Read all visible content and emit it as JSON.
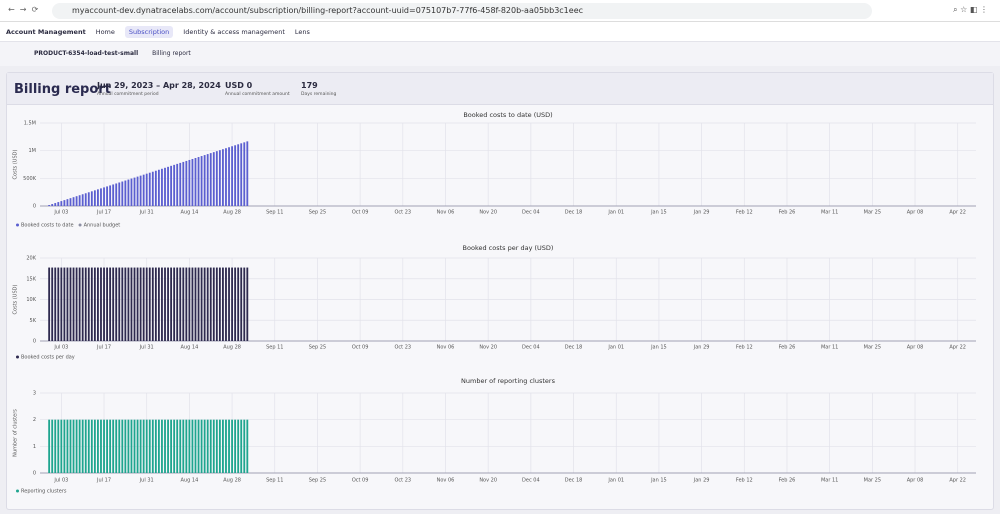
{
  "browser": {
    "url": "myaccount-dev.dynatracelabs.com/account/subscription/billing-report?account-uuid=075107b7-77f6-458f-820b-aa05bb3c1eec"
  },
  "nav": {
    "app": "Account Management",
    "items": [
      "Home",
      "Subscription",
      "Identity & access management",
      "Lens"
    ]
  },
  "breadcrumb": [
    "PRODUCT-6354-load-test-small",
    "Billing report"
  ],
  "header": {
    "title": "Billing report",
    "period": "Jun 29, 2023 – Apr 28, 2024",
    "period_label": "Annual commitment period",
    "amount": "USD 0",
    "amount_label": "Annual commitment amount",
    "days": "179",
    "days_label": "Days remaining"
  },
  "chart_data": [
    {
      "type": "bar",
      "title": "Booked costs to date (USD)",
      "y_label": "Costs (USD)",
      "x": [
        -4,
        -3,
        -2,
        -1,
        0,
        1,
        2,
        3,
        4,
        5,
        6,
        7,
        8,
        9,
        10,
        11,
        12,
        13,
        14,
        15,
        16,
        17,
        18,
        19,
        20,
        21,
        22,
        23,
        24,
        25,
        26,
        27,
        28,
        29,
        30,
        31,
        32,
        33,
        34,
        35,
        36,
        37,
        38,
        39,
        40,
        41,
        42,
        43,
        44,
        45,
        46,
        47,
        48,
        49,
        50,
        51,
        52,
        53,
        54,
        55,
        56,
        57,
        58,
        59,
        60,
        61
      ],
      "series": [
        {
          "name": "Booked costs to date",
          "color": "#5b5fd0",
          "values": [
            17700,
            35400,
            53100,
            70800,
            88500,
            106200,
            123900,
            141600,
            159300,
            177000,
            194700,
            212400,
            230100,
            247800,
            265500,
            283200,
            300900,
            318600,
            336300,
            354000,
            371700,
            389400,
            407100,
            424800,
            442500,
            460200,
            477900,
            495600,
            513300,
            531000,
            548700,
            566400,
            584100,
            601800,
            619500,
            637200,
            654900,
            672600,
            690300,
            708000,
            725700,
            743400,
            761100,
            778800,
            796500,
            814200,
            831900,
            849600,
            867300,
            885000,
            902700,
            920400,
            938100,
            955800,
            973500,
            991200,
            1008900,
            1026600,
            1044300,
            1062000,
            1079700,
            1097400,
            1115100,
            1132800,
            1150500,
            1168200
          ]
        }
      ],
      "legend_extra": [
        {
          "name": "Annual budget",
          "color": "#8c8fa3"
        }
      ],
      "xlim": [
        -7,
        300
      ],
      "xticks": [
        {
          "value": 0,
          "label": "Jul 03"
        },
        {
          "value": 14,
          "label": "Jul 17"
        },
        {
          "value": 28,
          "label": "Jul 31"
        },
        {
          "value": 42,
          "label": "Aug 14"
        },
        {
          "value": 56,
          "label": "Aug 28"
        },
        {
          "value": 70,
          "label": "Sep 11"
        },
        {
          "value": 84,
          "label": "Sep 25"
        },
        {
          "value": 98,
          "label": "Oct 09"
        },
        {
          "value": 112,
          "label": "Oct 23"
        },
        {
          "value": 126,
          "label": "Nov 06"
        },
        {
          "value": 140,
          "label": "Nov 20"
        },
        {
          "value": 154,
          "label": "Dec 04"
        },
        {
          "value": 168,
          "label": "Dec 18"
        },
        {
          "value": 182,
          "label": "Jan 01"
        },
        {
          "value": 196,
          "label": "Jan 15"
        },
        {
          "value": 210,
          "label": "Jan 29"
        },
        {
          "value": 224,
          "label": "Feb 12"
        },
        {
          "value": 238,
          "label": "Feb 26"
        },
        {
          "value": 252,
          "label": "Mar 11"
        },
        {
          "value": 266,
          "label": "Mar 25"
        },
        {
          "value": 280,
          "label": "Apr 08"
        },
        {
          "value": 294,
          "label": "Apr 22"
        }
      ],
      "ylim": [
        0,
        1500000
      ],
      "yticks": [
        0,
        {
          "value": 500000,
          "label": "500K"
        },
        {
          "value": 1000000,
          "label": "1M"
        },
        {
          "value": 1500000,
          "label": "1.5M"
        }
      ],
      "grid": true
    },
    {
      "type": "bar",
      "title": "Booked costs per day (USD)",
      "y_label": "Costs (USD)",
      "x": [
        -4,
        -3,
        -2,
        -1,
        0,
        1,
        2,
        3,
        4,
        5,
        6,
        7,
        8,
        9,
        10,
        11,
        12,
        13,
        14,
        15,
        16,
        17,
        18,
        19,
        20,
        21,
        22,
        23,
        24,
        25,
        26,
        27,
        28,
        29,
        30,
        31,
        32,
        33,
        34,
        35,
        36,
        37,
        38,
        39,
        40,
        41,
        42,
        43,
        44,
        45,
        46,
        47,
        48,
        49,
        50,
        51,
        52,
        53,
        54,
        55,
        56,
        57,
        58,
        59,
        60,
        61
      ],
      "series": [
        {
          "name": "Booked costs per day",
          "color": "#2e2a4f",
          "values": [
            17700,
            17700,
            17700,
            17700,
            17700,
            17700,
            17700,
            17700,
            17700,
            17700,
            17700,
            17700,
            17700,
            17700,
            17700,
            17700,
            17700,
            17700,
            17700,
            17700,
            17700,
            17700,
            17700,
            17700,
            17700,
            17700,
            17700,
            17700,
            17700,
            17700,
            17700,
            17700,
            17700,
            17700,
            17700,
            17700,
            17700,
            17700,
            17700,
            17700,
            17700,
            17700,
            17700,
            17700,
            17700,
            17700,
            17700,
            17700,
            17700,
            17700,
            17700,
            17700,
            17700,
            17700,
            17700,
            17700,
            17700,
            17700,
            17700,
            17700,
            17700,
            17700,
            17700,
            17700,
            17700,
            17700
          ]
        }
      ],
      "xlim": [
        -7,
        300
      ],
      "xticks": [
        {
          "value": 0,
          "label": "Jul 03"
        },
        {
          "value": 14,
          "label": "Jul 17"
        },
        {
          "value": 28,
          "label": "Jul 31"
        },
        {
          "value": 42,
          "label": "Aug 14"
        },
        {
          "value": 56,
          "label": "Aug 28"
        },
        {
          "value": 70,
          "label": "Sep 11"
        },
        {
          "value": 84,
          "label": "Sep 25"
        },
        {
          "value": 98,
          "label": "Oct 09"
        },
        {
          "value": 112,
          "label": "Oct 23"
        },
        {
          "value": 126,
          "label": "Nov 06"
        },
        {
          "value": 140,
          "label": "Nov 20"
        },
        {
          "value": 154,
          "label": "Dec 04"
        },
        {
          "value": 168,
          "label": "Dec 18"
        },
        {
          "value": 182,
          "label": "Jan 01"
        },
        {
          "value": 196,
          "label": "Jan 15"
        },
        {
          "value": 210,
          "label": "Jan 29"
        },
        {
          "value": 224,
          "label": "Feb 12"
        },
        {
          "value": 238,
          "label": "Feb 26"
        },
        {
          "value": 252,
          "label": "Mar 11"
        },
        {
          "value": 266,
          "label": "Mar 25"
        },
        {
          "value": 280,
          "label": "Apr 08"
        },
        {
          "value": 294,
          "label": "Apr 22"
        }
      ],
      "ylim": [
        0,
        20000
      ],
      "yticks": [
        0,
        {
          "value": 5000,
          "label": "5K"
        },
        {
          "value": 10000,
          "label": "10K"
        },
        {
          "value": 15000,
          "label": "15K"
        },
        {
          "value": 20000,
          "label": "20K"
        }
      ],
      "grid": true
    },
    {
      "type": "bar",
      "title": "Number of reporting clusters",
      "y_label": "Number of clusters",
      "x": [
        -4,
        -3,
        -2,
        -1,
        0,
        1,
        2,
        3,
        4,
        5,
        6,
        7,
        8,
        9,
        10,
        11,
        12,
        13,
        14,
        15,
        16,
        17,
        18,
        19,
        20,
        21,
        22,
        23,
        24,
        25,
        26,
        27,
        28,
        29,
        30,
        31,
        32,
        33,
        34,
        35,
        36,
        37,
        38,
        39,
        40,
        41,
        42,
        43,
        44,
        45,
        46,
        47,
        48,
        49,
        50,
        51,
        52,
        53,
        54,
        55,
        56,
        57,
        58,
        59,
        60,
        61
      ],
      "series": [
        {
          "name": "Reporting clusters",
          "color": "#1fa58f",
          "values": [
            2,
            2,
            2,
            2,
            2,
            2,
            2,
            2,
            2,
            2,
            2,
            2,
            2,
            2,
            2,
            2,
            2,
            2,
            2,
            2,
            2,
            2,
            2,
            2,
            2,
            2,
            2,
            2,
            2,
            2,
            2,
            2,
            2,
            2,
            2,
            2,
            2,
            2,
            2,
            2,
            2,
            2,
            2,
            2,
            2,
            2,
            2,
            2,
            2,
            2,
            2,
            2,
            2,
            2,
            2,
            2,
            2,
            2,
            2,
            2,
            2,
            2,
            2,
            2,
            2,
            2
          ]
        }
      ],
      "xlim": [
        -7,
        300
      ],
      "xticks": [
        {
          "value": 0,
          "label": "Jul 03"
        },
        {
          "value": 14,
          "label": "Jul 17"
        },
        {
          "value": 28,
          "label": "Jul 31"
        },
        {
          "value": 42,
          "label": "Aug 14"
        },
        {
          "value": 56,
          "label": "Aug 28"
        },
        {
          "value": 70,
          "label": "Sep 11"
        },
        {
          "value": 84,
          "label": "Sep 25"
        },
        {
          "value": 98,
          "label": "Oct 09"
        },
        {
          "value": 112,
          "label": "Oct 23"
        },
        {
          "value": 126,
          "label": "Nov 06"
        },
        {
          "value": 140,
          "label": "Nov 20"
        },
        {
          "value": 154,
          "label": "Dec 04"
        },
        {
          "value": 168,
          "label": "Dec 18"
        },
        {
          "value": 182,
          "label": "Jan 01"
        },
        {
          "value": 196,
          "label": "Jan 15"
        },
        {
          "value": 210,
          "label": "Jan 29"
        },
        {
          "value": 224,
          "label": "Feb 12"
        },
        {
          "value": 238,
          "label": "Feb 26"
        },
        {
          "value": 252,
          "label": "Mar 11"
        },
        {
          "value": 266,
          "label": "Mar 25"
        },
        {
          "value": 280,
          "label": "Apr 08"
        },
        {
          "value": 294,
          "label": "Apr 22"
        }
      ],
      "ylim": [
        0,
        3
      ],
      "yticks": [
        0,
        1,
        2,
        3
      ],
      "grid": true
    }
  ]
}
